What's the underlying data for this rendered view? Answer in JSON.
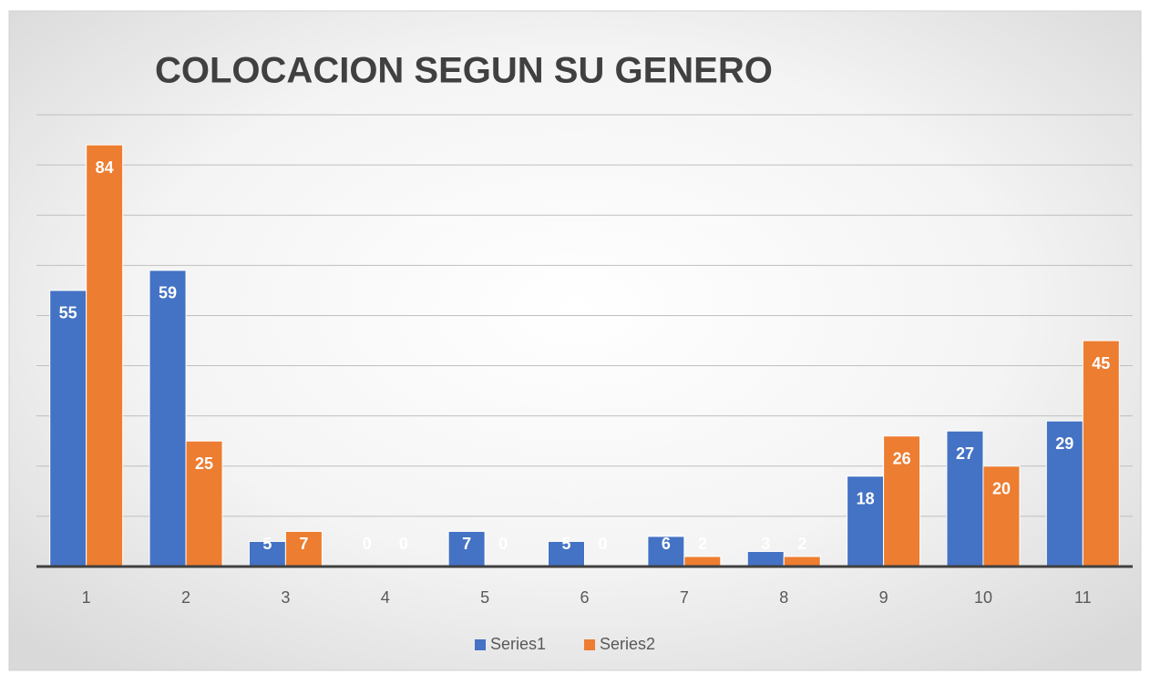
{
  "chart_data": {
    "type": "bar",
    "title": "COLOCACION SEGUN SU GENERO",
    "categories": [
      "1",
      "2",
      "3",
      "4",
      "5",
      "6",
      "7",
      "8",
      "9",
      "10",
      "11"
    ],
    "series": [
      {
        "name": "Series1",
        "color": "#4472c4",
        "values": [
          55,
          59,
          5,
          0,
          7,
          5,
          6,
          3,
          18,
          27,
          29
        ]
      },
      {
        "name": "Series2",
        "color": "#ed7d31",
        "values": [
          84,
          25,
          7,
          0,
          0,
          0,
          2,
          2,
          26,
          20,
          45
        ]
      }
    ],
    "ylim": [
      0,
      90
    ],
    "yticks": [
      0,
      10,
      20,
      30,
      40,
      50,
      60,
      70,
      80,
      90
    ],
    "grid": true,
    "legend": "bottom"
  }
}
